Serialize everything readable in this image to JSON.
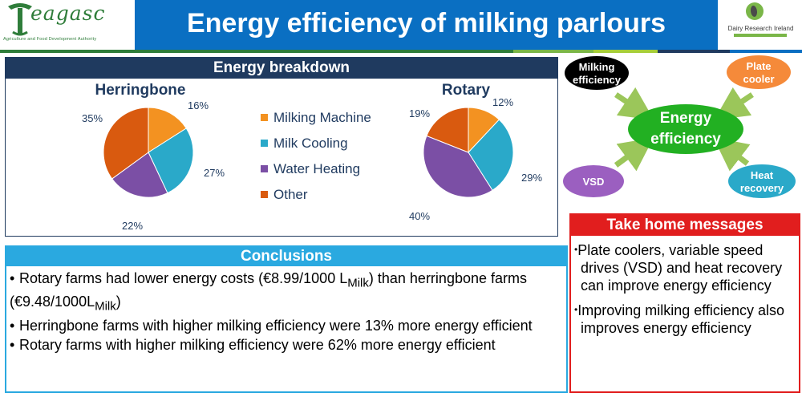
{
  "header": {
    "logo_word": "eagasc",
    "logo_sub": "Agriculture and Food Development Authority",
    "title": "Energy efficiency of milking parlours",
    "partner_logo": "Dairy Research Ireland",
    "stripe_colors": [
      "#2f7d3a",
      "#7ab648",
      "#a6ce39",
      "#1f3a5f",
      "#0a6fc2"
    ]
  },
  "breakdown": {
    "title": "Energy breakdown",
    "legend": [
      {
        "label": "Milking Machine",
        "color": "#f39221"
      },
      {
        "label": "Milk Cooling",
        "color": "#2aa9c9"
      },
      {
        "label": "Water Heating",
        "color": "#7b4fa5"
      },
      {
        "label": "Other",
        "color": "#d95a0f"
      }
    ]
  },
  "chart_data": [
    {
      "type": "pie",
      "title": "Herringbone",
      "categories": [
        "Milking Machine",
        "Milk Cooling",
        "Water Heating",
        "Other"
      ],
      "values": [
        16,
        27,
        22,
        35
      ],
      "labels": [
        "16%",
        "27%",
        "22%",
        "35%"
      ]
    },
    {
      "type": "pie",
      "title": "Rotary",
      "categories": [
        "Milking Machine",
        "Milk Cooling",
        "Water Heating",
        "Other"
      ],
      "values": [
        12,
        29,
        40,
        19
      ],
      "labels": [
        "12%",
        "29%",
        "40%",
        "19%"
      ]
    }
  ],
  "diagram": {
    "center": {
      "line1": "Energy",
      "line2": "efficiency",
      "color": "#22b022"
    },
    "nodes": [
      {
        "line1": "Milking",
        "line2": "efficiency",
        "color": "#000000",
        "text_color": "#ffffff"
      },
      {
        "line1": "Plate",
        "line2": "cooler",
        "color": "#f58a3a",
        "text_color": "#ffffff"
      },
      {
        "line1": "VSD",
        "line2": "",
        "color": "#9b5fc0",
        "text_color": "#ffffff"
      },
      {
        "line1": "Heat",
        "line2": "recovery",
        "color": "#2aa9c9",
        "text_color": "#ffffff"
      }
    ],
    "arrow_color": "#9bc65a"
  },
  "conclusions": {
    "title": "Conclusions",
    "bullet": "•",
    "items": [
      {
        "pre": "Rotary farms had lower energy costs (€8.99/1000 L",
        "sub1": "Milk",
        "mid": ") than herringbone farms (€9.48/1000L",
        "sub2": "Milk",
        "post": ")"
      },
      {
        "text": "Herringbone farms with higher milking efficiency were 13% more energy efficient"
      },
      {
        "text": "Rotary farms with higher milking efficiency were 62% more energy efficient"
      }
    ]
  },
  "takehome": {
    "title": "Take home messages",
    "bullet": "•",
    "items": [
      "Plate coolers, variable speed drives (VSD) and heat recovery can improve energy efficiency",
      "Improving milking efficiency also improves energy efficiency"
    ]
  }
}
